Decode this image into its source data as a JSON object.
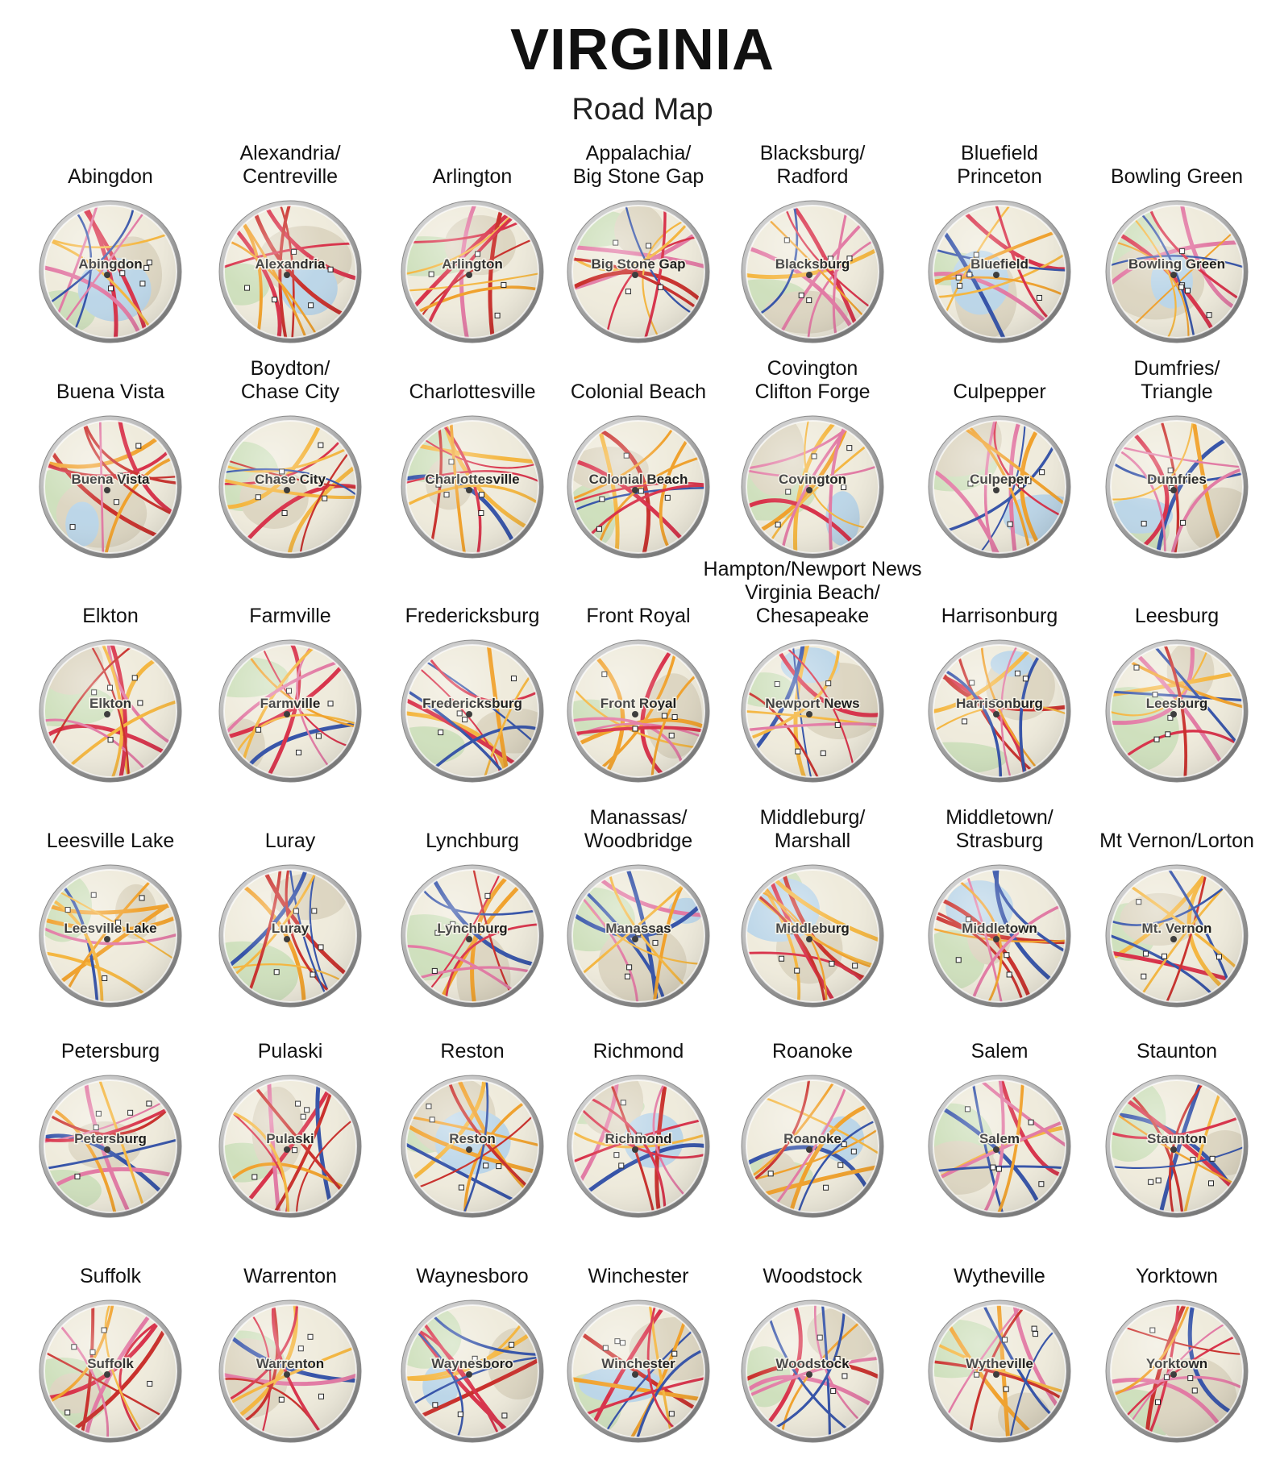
{
  "header": {
    "title": "VIRGINIA",
    "subtitle": "Road Map"
  },
  "rows": [
    [
      {
        "lines": [
          "Abingdon"
        ],
        "map_label": "Abingdon"
      },
      {
        "lines": [
          "Alexandria/",
          "Centreville"
        ],
        "map_label": "Alexandria"
      },
      {
        "lines": [
          "Arlington"
        ],
        "map_label": "Arlington"
      },
      {
        "lines": [
          "Appalachia/",
          "Big Stone Gap"
        ],
        "map_label": "Big Stone Gap"
      },
      {
        "lines": [
          "Blacksburg/",
          "Radford"
        ],
        "map_label": "Blacksburg"
      },
      {
        "lines": [
          "Bluefield",
          "Princeton"
        ],
        "map_label": "Bluefield"
      },
      {
        "lines": [
          "Bowling Green"
        ],
        "map_label": "Bowling Green"
      }
    ],
    [
      {
        "lines": [
          "Buena Vista"
        ],
        "map_label": "Buena Vista"
      },
      {
        "lines": [
          "Boydton/",
          "Chase City"
        ],
        "map_label": "Chase City"
      },
      {
        "lines": [
          "Charlottesville"
        ],
        "map_label": "Charlottesville"
      },
      {
        "lines": [
          "Colonial Beach"
        ],
        "map_label": "Colonial Beach"
      },
      {
        "lines": [
          "Covington",
          "Clifton Forge"
        ],
        "map_label": "Covington"
      },
      {
        "lines": [
          "Culpepper"
        ],
        "map_label": "Culpeper"
      },
      {
        "lines": [
          "Dumfries/",
          "Triangle"
        ],
        "map_label": "Dumfries"
      }
    ],
    [
      {
        "lines": [
          "Elkton"
        ],
        "map_label": "Elkton"
      },
      {
        "lines": [
          "Farmville"
        ],
        "map_label": "Farmville"
      },
      {
        "lines": [
          "Fredericksburg"
        ],
        "map_label": "Fredericksburg"
      },
      {
        "lines": [
          "Front Royal"
        ],
        "map_label": "Front Royal"
      },
      {
        "lines": [
          "Hampton/Newport News",
          "Virginia Beach/",
          "Chesapeake"
        ],
        "map_label": "Newport News"
      },
      {
        "lines": [
          "Harrisonburg"
        ],
        "map_label": "Harrisonburg"
      },
      {
        "lines": [
          "Leesburg"
        ],
        "map_label": "Leesburg"
      }
    ],
    [
      {
        "lines": [
          "Leesville Lake"
        ],
        "map_label": "Leesville Lake"
      },
      {
        "lines": [
          "Luray"
        ],
        "map_label": "Luray"
      },
      {
        "lines": [
          "Lynchburg"
        ],
        "map_label": "Lynchburg"
      },
      {
        "lines": [
          "Manassas/",
          "Woodbridge"
        ],
        "map_label": "Manassas"
      },
      {
        "lines": [
          "Middleburg/",
          "Marshall"
        ],
        "map_label": "Middleburg"
      },
      {
        "lines": [
          "Middletown/",
          "Strasburg"
        ],
        "map_label": "Middletown"
      },
      {
        "lines": [
          "Mt Vernon/Lorton"
        ],
        "map_label": "Mt. Vernon"
      }
    ],
    [
      {
        "lines": [
          "Petersburg"
        ],
        "map_label": "Petersburg"
      },
      {
        "lines": [
          "Pulaski"
        ],
        "map_label": "Pulaski"
      },
      {
        "lines": [
          "Reston"
        ],
        "map_label": "Reston"
      },
      {
        "lines": [
          "Richmond"
        ],
        "map_label": "Richmond"
      },
      {
        "lines": [
          "Roanoke"
        ],
        "map_label": "Roanoke"
      },
      {
        "lines": [
          "Salem"
        ],
        "map_label": "Salem"
      },
      {
        "lines": [
          "Staunton"
        ],
        "map_label": "Staunton"
      }
    ],
    [
      {
        "lines": [
          "Suffolk"
        ],
        "map_label": "Suffolk"
      },
      {
        "lines": [
          "Warrenton"
        ],
        "map_label": "Warrenton"
      },
      {
        "lines": [
          "Waynesboro"
        ],
        "map_label": "Waynesboro"
      },
      {
        "lines": [
          "Winchester"
        ],
        "map_label": "Winchester"
      },
      {
        "lines": [
          "Woodstock"
        ],
        "map_label": "Woodstock"
      },
      {
        "lines": [
          "Wytheville"
        ],
        "map_label": "Wytheville"
      },
      {
        "lines": [
          "Yorktown"
        ],
        "map_label": "Yorktown"
      }
    ]
  ]
}
